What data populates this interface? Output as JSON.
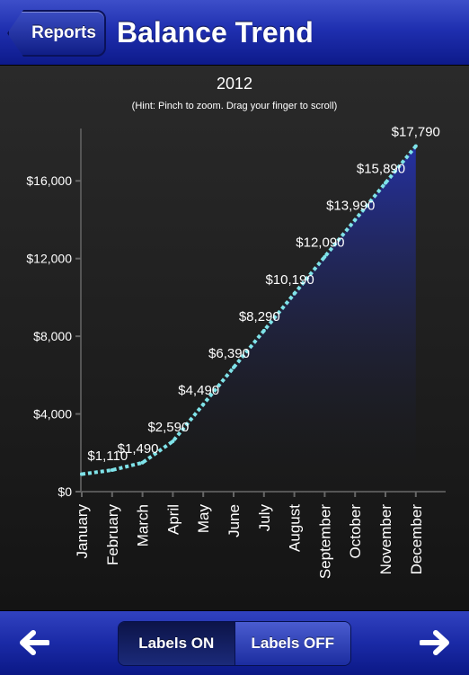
{
  "navbar": {
    "back_label": "Reports",
    "title": "Balance Trend"
  },
  "chart_data": {
    "type": "area",
    "title": "2012",
    "subtitle": "(Hint: Pinch to zoom. Drag your finger to scroll)",
    "categories": [
      "January",
      "February",
      "March",
      "April",
      "May",
      "June",
      "July",
      "August",
      "September",
      "October",
      "November",
      "December"
    ],
    "values": [
      900,
      1110,
      1490,
      2590,
      4490,
      6390,
      8290,
      10190,
      12090,
      13990,
      15890,
      17790
    ],
    "data_labels": [
      "",
      "$1,110",
      "$1,490",
      "$2,590",
      "$4,490",
      "$6,390",
      "$8,290",
      "$10,190",
      "$12,090",
      "$13,990",
      "$15,890",
      "$17,790"
    ],
    "yticks": [
      0,
      4000,
      8000,
      12000,
      16000
    ],
    "ytick_labels": [
      "$0",
      "$4,000",
      "$8,000",
      "$12,000",
      "$16,000"
    ],
    "ylim": [
      0,
      18000
    ],
    "line_color": "#7fe3e9",
    "fill_color": "#1e2a8e"
  },
  "toolbar": {
    "prev_icon": "arrow-left-icon",
    "next_icon": "arrow-right-icon",
    "labels_on": "Labels ON",
    "labels_off": "Labels OFF",
    "active": "Labels ON"
  }
}
